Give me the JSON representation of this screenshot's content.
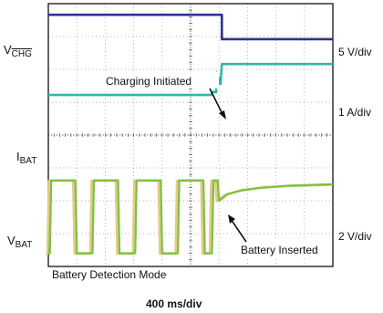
{
  "chart_data": {
    "type": "line",
    "title": "",
    "xlabel": "400 ms/div",
    "x_divisions": 10,
    "y_divisions": 8,
    "grid": true,
    "colors": {
      "vchg": "#2e3192",
      "ibat": "#2fb8a8",
      "vbat_a": "#7ec242",
      "vbat_b": "#e8c88a",
      "grid": "#9a9a9a",
      "frame": "#222222"
    },
    "channels": [
      {
        "key": "vchg",
        "label_main": "V",
        "label_sub": "CHG",
        "label_sub_overline": true,
        "scale": "5 V/div",
        "points": [
          [
            0,
            7.66
          ],
          [
            6.1,
            7.66
          ],
          [
            6.1,
            6.92
          ],
          [
            10,
            6.92
          ]
        ]
      },
      {
        "key": "ibat",
        "label_main": "I",
        "label_sub": "BAT",
        "scale": "1 A/div",
        "points": [
          [
            0,
            5.22
          ],
          [
            5.73,
            5.22
          ],
          [
            5.78,
            5.32
          ],
          [
            5.9,
            5.3
          ],
          [
            5.92,
            5.9
          ],
          [
            6.05,
            5.55
          ],
          [
            6.1,
            6.16
          ],
          [
            10,
            6.16
          ]
        ]
      },
      {
        "key": "vbat",
        "label_main": "V",
        "label_sub": "BAT",
        "scale": "2 V/div",
        "points": [
          [
            0,
            0.4
          ],
          [
            0.05,
            0.4
          ],
          [
            0.1,
            2.62
          ],
          [
            0.95,
            2.62
          ],
          [
            1.0,
            0.4
          ],
          [
            1.55,
            0.4
          ],
          [
            1.6,
            2.62
          ],
          [
            2.45,
            2.62
          ],
          [
            2.5,
            0.4
          ],
          [
            3.05,
            0.4
          ],
          [
            3.1,
            2.62
          ],
          [
            3.95,
            2.62
          ],
          [
            4.0,
            0.4
          ],
          [
            4.55,
            0.4
          ],
          [
            4.6,
            2.62
          ],
          [
            5.45,
            2.62
          ],
          [
            5.5,
            0.4
          ],
          [
            5.75,
            0.4
          ],
          [
            5.8,
            2.62
          ],
          [
            5.95,
            2.62
          ],
          [
            6.0,
            2.0
          ],
          [
            6.3,
            2.2
          ],
          [
            6.8,
            2.32
          ],
          [
            7.5,
            2.4
          ],
          [
            8.5,
            2.46
          ],
          [
            10,
            2.5
          ]
        ]
      }
    ],
    "annotations": [
      {
        "text": "Charging Initiated",
        "target": [
          5.9,
          5.35
        ]
      },
      {
        "text": "Battery Inserted",
        "target": [
          6.05,
          2.0
        ]
      },
      {
        "text": "Battery Detection Mode"
      }
    ]
  }
}
